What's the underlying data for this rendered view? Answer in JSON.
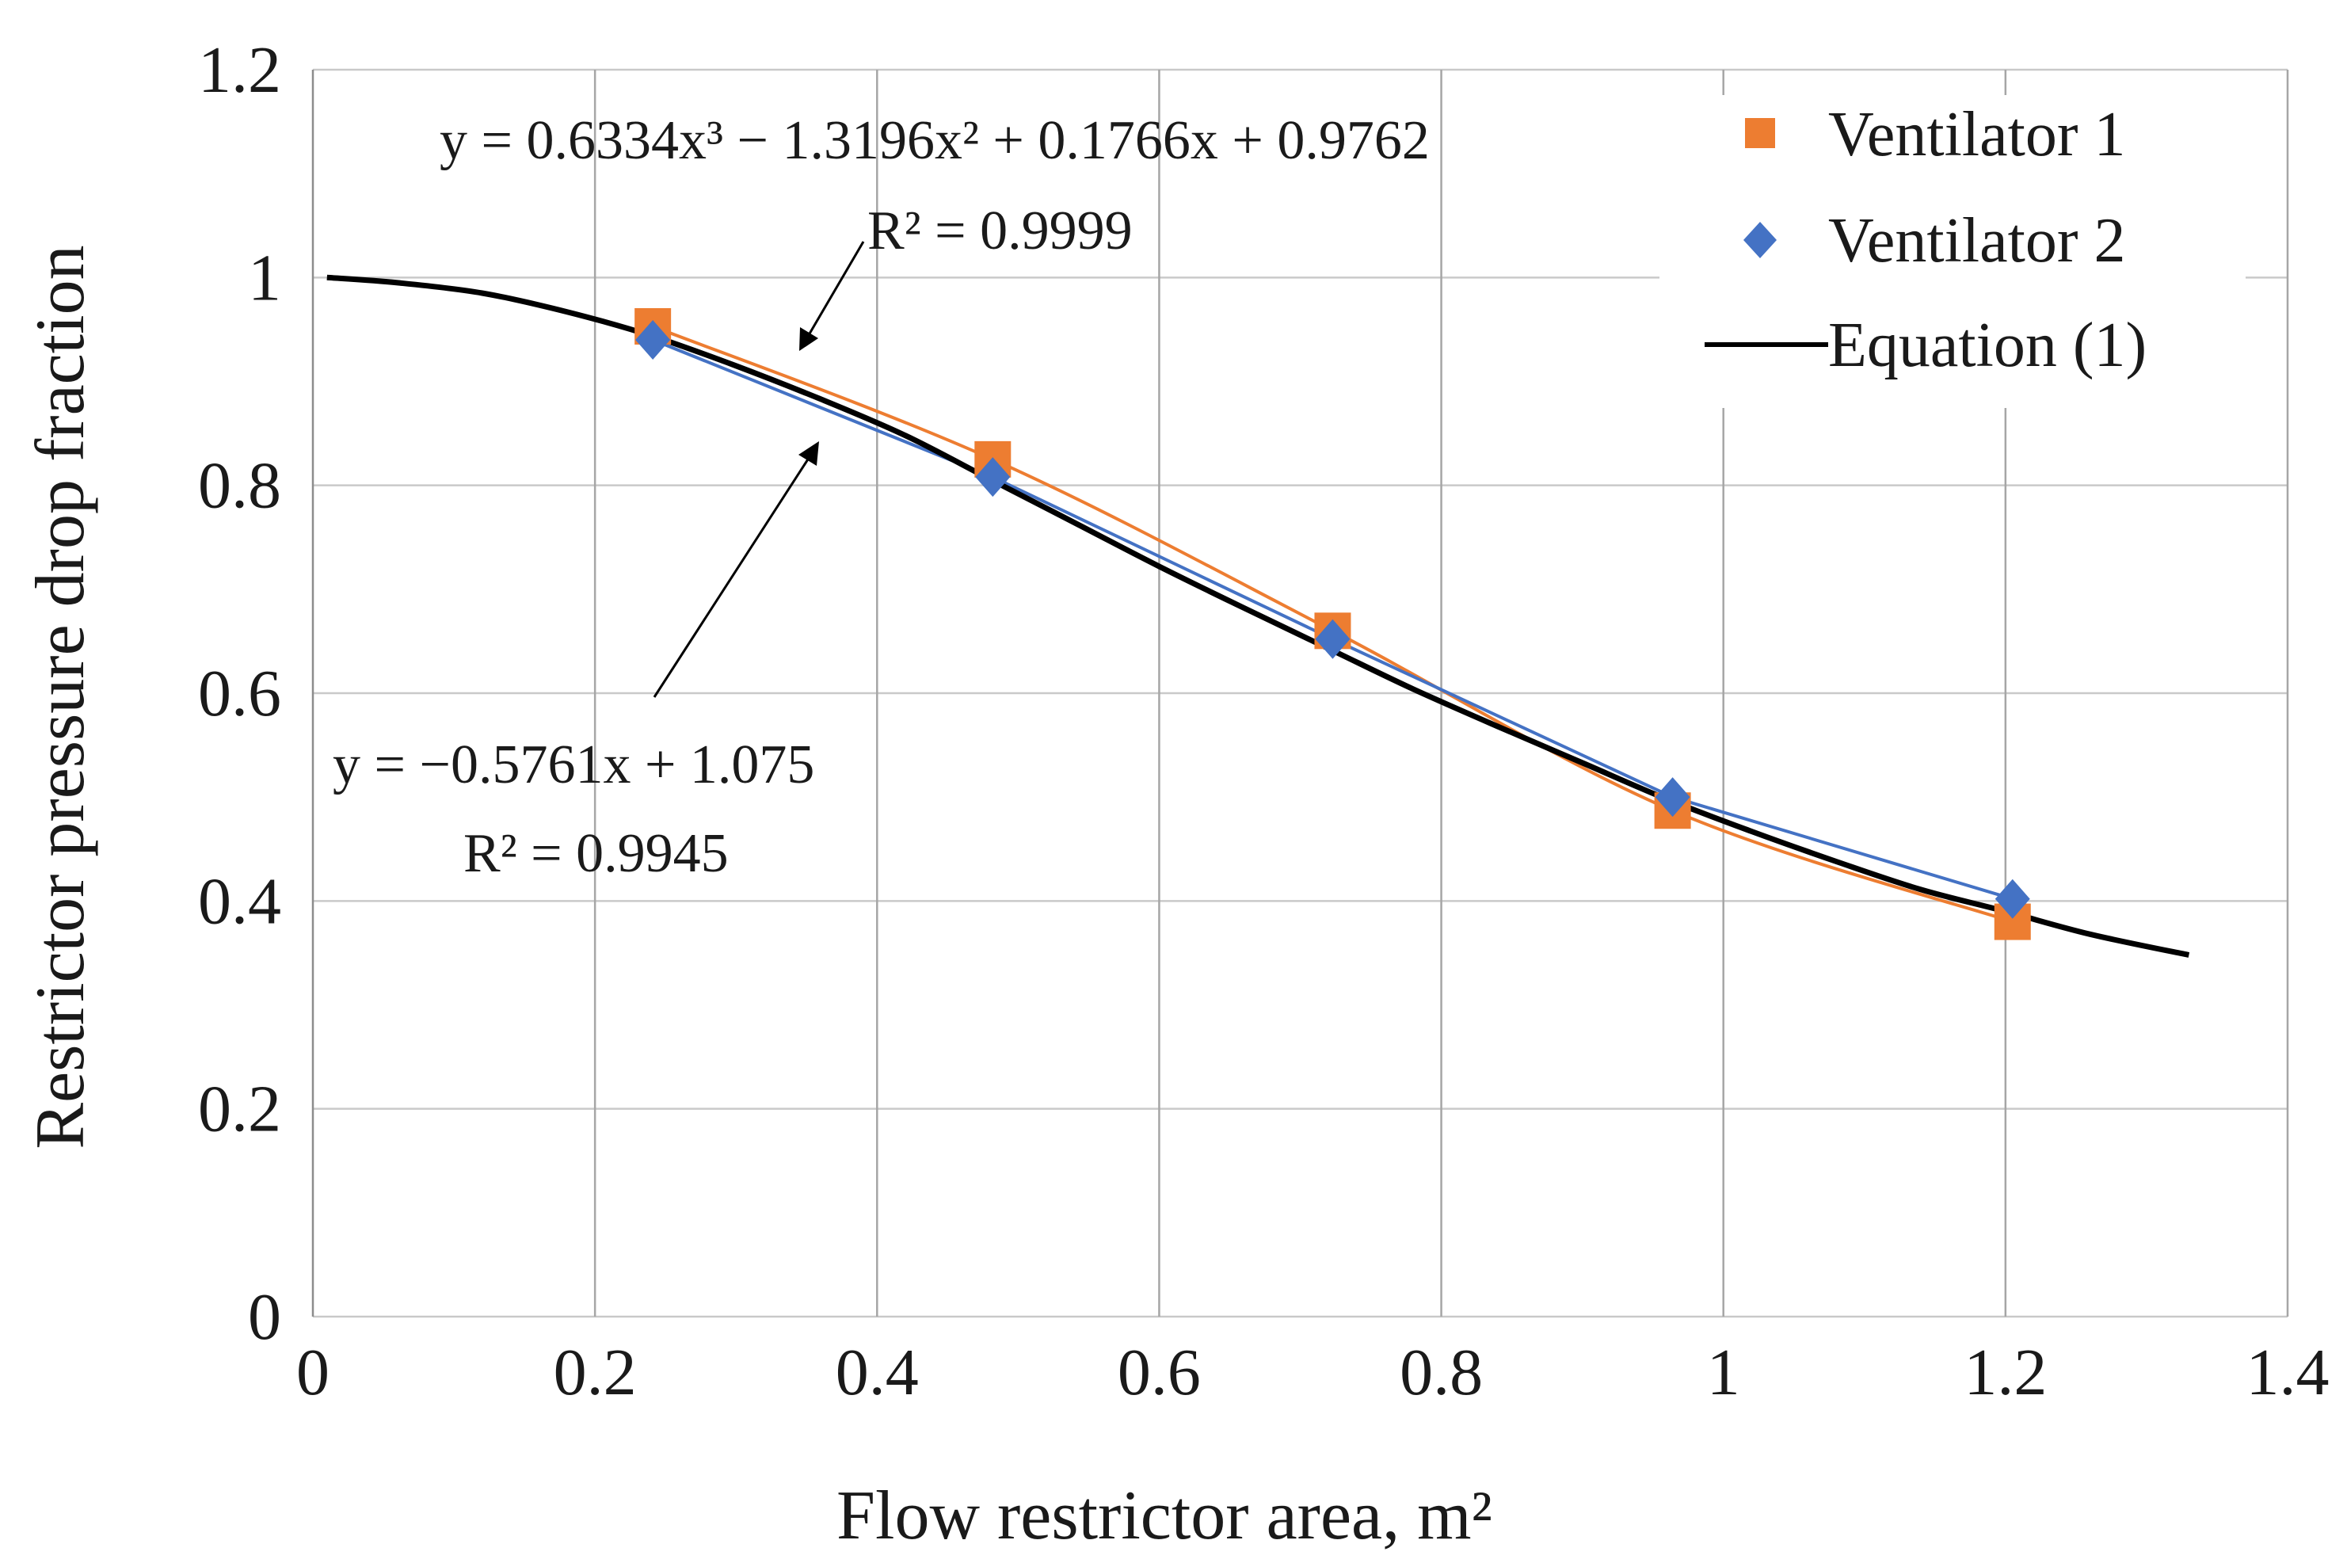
{
  "chart_data": {
    "type": "scatter",
    "title": "",
    "xlabel": "Flow restrictor area, m²",
    "ylabel": "Restrictor pressure drop fraction",
    "xlim": [
      0,
      1.4
    ],
    "ylim": [
      0,
      1.2
    ],
    "x_ticks": [
      "0",
      "0.2",
      "0.4",
      "0.6",
      "0.8",
      "1",
      "1.2",
      "1.4"
    ],
    "y_ticks": [
      "0",
      "0.2",
      "0.4",
      "0.6",
      "0.8",
      "1",
      "1.2"
    ],
    "x_tick_values": [
      0,
      0.2,
      0.4,
      0.6,
      0.8,
      1.0,
      1.2,
      1.4
    ],
    "y_tick_values": [
      0,
      0.2,
      0.4,
      0.6,
      0.8,
      1.0,
      1.2
    ],
    "grid": true,
    "legend_position": "top-right",
    "series": [
      {
        "name": "Ventilator 1",
        "marker": "square",
        "color": "#ED7D31",
        "x": [
          0.241,
          0.482,
          0.723,
          0.964,
          1.205
        ],
        "y": [
          0.953,
          0.825,
          0.66,
          0.487,
          0.38
        ],
        "trendline": {
          "kind": "polynomial-3",
          "coefficients": [
            0.6334,
            -1.3196,
            0.1766,
            0.9762
          ],
          "equation": "y = 0.6334x³ − 1.3196x² + 0.1766x + 0.9762",
          "r2": "R² = 0.9999"
        }
      },
      {
        "name": "Ventilator 2",
        "marker": "diamond",
        "color": "#4472C4",
        "x": [
          0.241,
          0.482,
          0.723,
          0.964,
          1.205
        ],
        "y": [
          0.94,
          0.808,
          0.652,
          0.5,
          0.402
        ],
        "trendline": {
          "kind": "piecewise-linear",
          "equation": "y = −0.5761x + 1.075",
          "r2": "R² = 0.9945"
        }
      },
      {
        "name": "Equation (1)",
        "marker": "none",
        "color": "#000000",
        "x": [
          0.01,
          0.06,
          0.12,
          0.18,
          0.24,
          0.3,
          0.36,
          0.42,
          0.48,
          0.54,
          0.6,
          0.66,
          0.72,
          0.78,
          0.84,
          0.9,
          0.96,
          1.02,
          1.08,
          1.14,
          1.2,
          1.26,
          1.33
        ],
        "y": [
          1.0,
          0.995,
          0.985,
          0.967,
          0.944,
          0.915,
          0.883,
          0.848,
          0.806,
          0.764,
          0.722,
          0.682,
          0.643,
          0.604,
          0.568,
          0.533,
          0.498,
          0.467,
          0.438,
          0.411,
          0.39,
          0.368,
          0.348
        ]
      }
    ]
  }
}
